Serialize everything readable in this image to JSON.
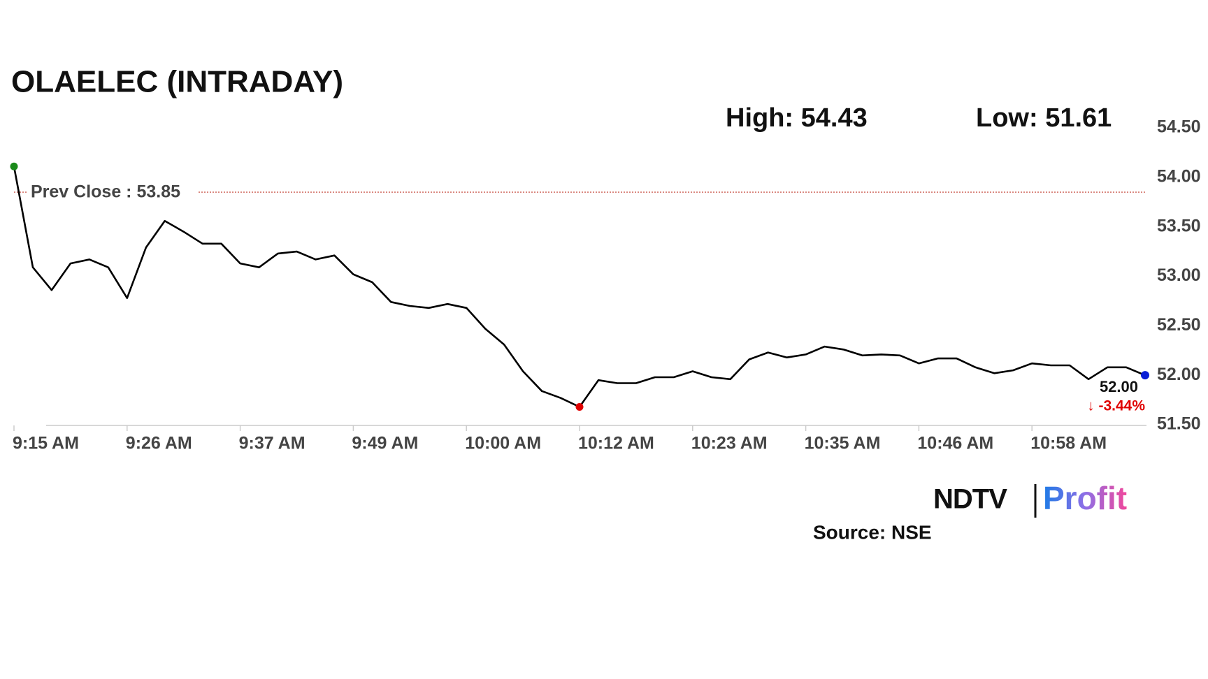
{
  "chart_data": {
    "type": "line",
    "title": "OLAELEC (INTRADAY)",
    "annotations": [
      "High: 54.43",
      "Low: 51.61"
    ],
    "prev_close": {
      "value": 53.85,
      "label": "Prev Close : 53.85",
      "color": "#c0392b"
    },
    "last_label": "52.00",
    "change_label": "↓ -3.44%",
    "change_color": "#e00000",
    "color": "#000000",
    "start_color": "#1a8a1a",
    "low_color": "#e00000",
    "end_color": "#0a1fd6",
    "categories": [
      "9:15 AM",
      null,
      null,
      null,
      null,
      null,
      "9:26 AM",
      null,
      null,
      null,
      null,
      null,
      "9:37 AM",
      null,
      null,
      null,
      null,
      null,
      "9:49 AM",
      null,
      null,
      null,
      null,
      null,
      "10:00 AM",
      null,
      null,
      null,
      null,
      null,
      "10:12 AM",
      null,
      null,
      null,
      null,
      null,
      "10:23 AM",
      null,
      null,
      null,
      null,
      null,
      "10:35 AM",
      null,
      null,
      null,
      null,
      null,
      "10:46 AM",
      null,
      null,
      null,
      null,
      null,
      "10:58 AM",
      null,
      null,
      null,
      null,
      null,
      null
    ],
    "values": [
      54.11,
      53.09,
      52.86,
      53.13,
      53.17,
      53.09,
      52.78,
      53.29,
      53.56,
      53.45,
      53.33,
      53.33,
      53.13,
      53.09,
      53.23,
      53.25,
      53.17,
      53.21,
      53.02,
      52.94,
      52.74,
      52.7,
      52.68,
      52.72,
      52.68,
      52.47,
      52.31,
      52.04,
      51.84,
      51.77,
      51.68,
      51.95,
      51.92,
      51.92,
      51.98,
      51.98,
      52.04,
      51.98,
      51.96,
      52.16,
      52.23,
      52.18,
      52.21,
      52.29,
      52.26,
      52.2,
      52.21,
      52.2,
      52.12,
      52.17,
      52.17,
      52.08,
      52.02,
      52.05,
      52.12,
      52.1,
      52.1,
      51.96,
      52.08,
      52.08,
      52.0
    ],
    "ylim": [
      51.5,
      54.5
    ],
    "yticks": [
      {
        "value": 51.5,
        "label": "51.50"
      },
      {
        "value": 52,
        "label": "52.00"
      },
      {
        "value": 52.5,
        "label": "52.50"
      },
      {
        "value": 53,
        "label": "53.00"
      },
      {
        "value": 53.5,
        "label": "53.50"
      },
      {
        "value": 54,
        "label": "54.00"
      },
      {
        "value": 54.5,
        "label": "54.50"
      }
    ],
    "logo": {
      "left": "NDTV",
      "right": "Profit"
    },
    "source": "Source: NSE"
  }
}
